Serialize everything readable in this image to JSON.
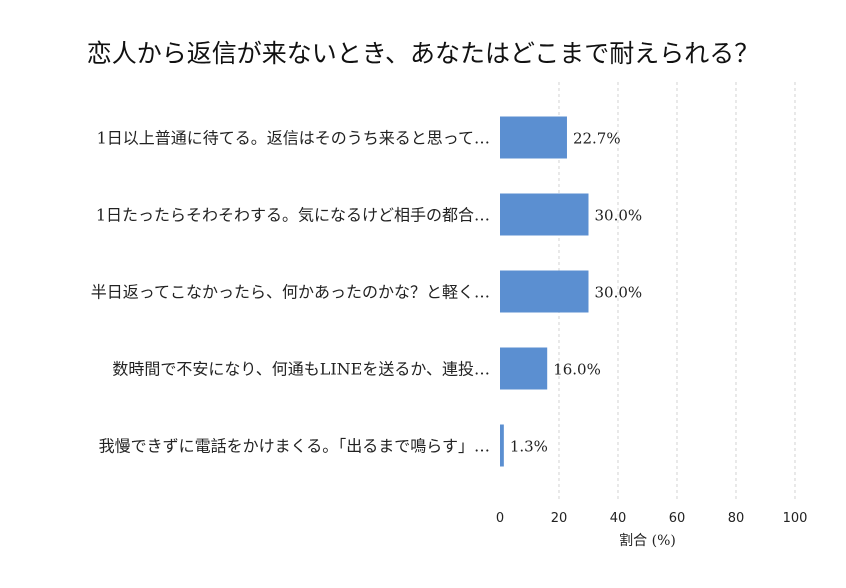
{
  "chart_data": {
    "type": "bar",
    "orientation": "horizontal",
    "title": "恋人から返信が来ないとき、あなたはどこまで耐えられる？",
    "categories": [
      "1日以上普通に待てる。返信はそのうち来ると思って…",
      "1日たったらそわそわする。気になるけど相手の都合…",
      "半日返ってこなかったら、何かあったのかな？と軽く…",
      "数時間で不安になり、何通もLINEを送るか、連投…",
      "我慢できずに電話をかけまくる。「出るまで鳴らす」…"
    ],
    "values": [
      22.7,
      30.0,
      30.0,
      16.0,
      1.3
    ],
    "value_labels": [
      "22.7%",
      "30.0%",
      "30.0%",
      "16.0%",
      "1.3%"
    ],
    "xlabel": "割合 (%)",
    "xlim": [
      0,
      100
    ],
    "xticks": [
      0,
      20,
      40,
      60,
      80,
      100
    ],
    "grid": "x-dashed",
    "bar_color": "#5b8fd1"
  }
}
